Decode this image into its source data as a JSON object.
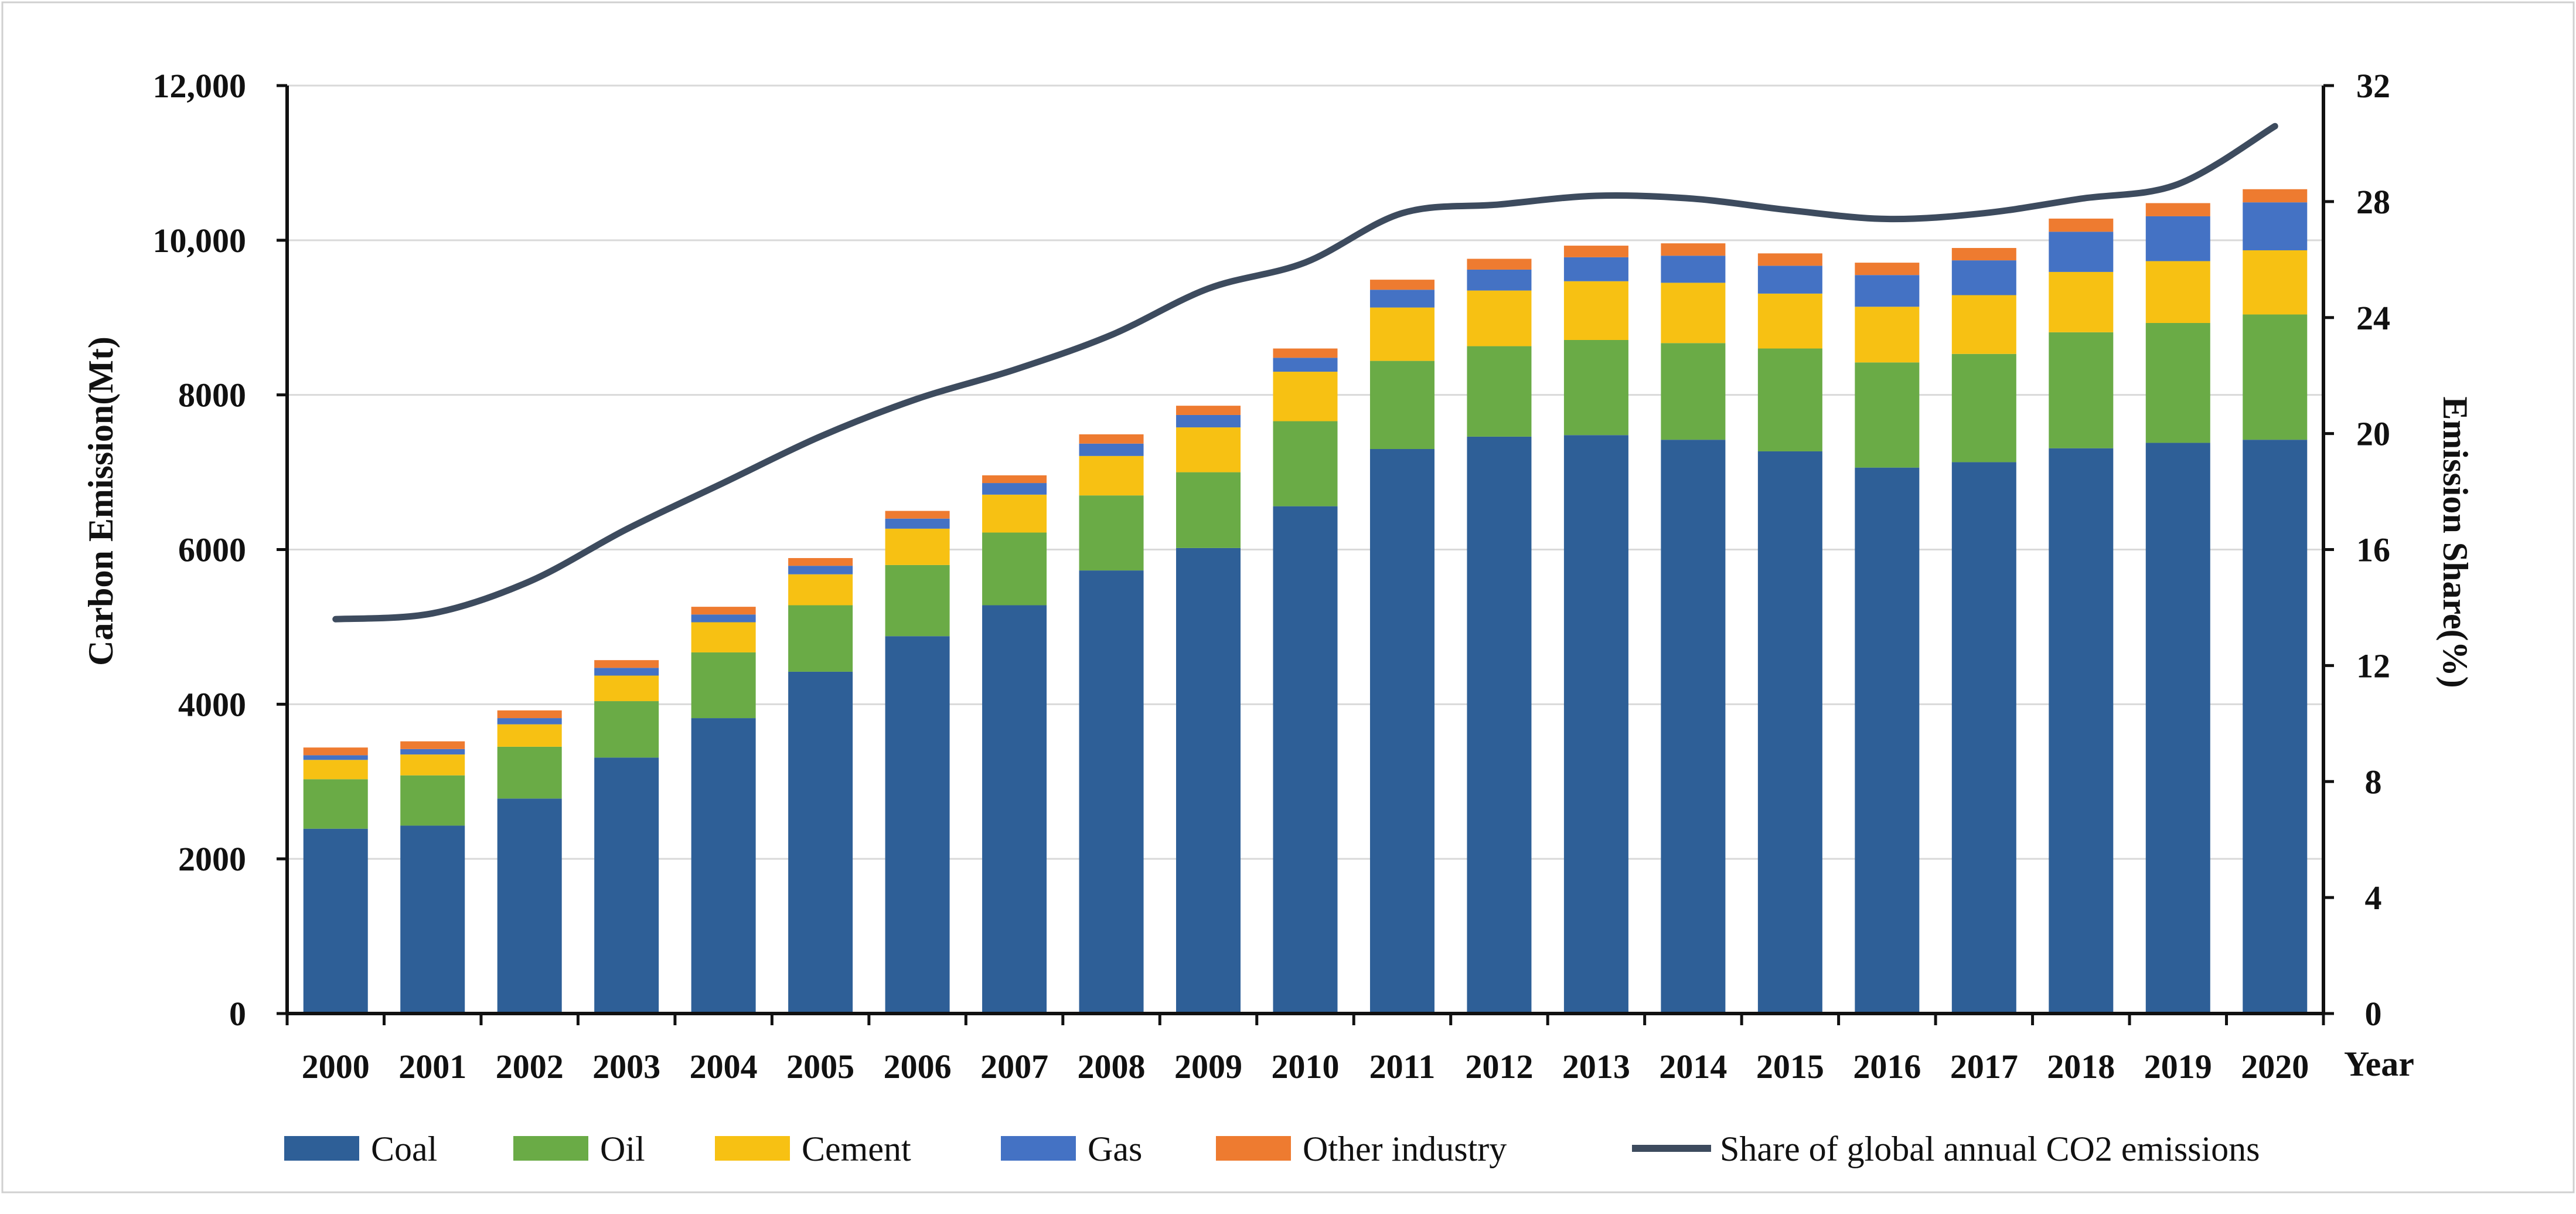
{
  "chart_data": {
    "type": "bar",
    "stacked": true,
    "categories": [
      "2000",
      "2001",
      "2002",
      "2003",
      "2004",
      "2005",
      "2006",
      "2007",
      "2008",
      "2009",
      "2010",
      "2011",
      "2012",
      "2013",
      "2014",
      "2015",
      "2016",
      "2017",
      "2018",
      "2019",
      "2020"
    ],
    "series": [
      {
        "name": "Coal",
        "color": "#2e5f97",
        "values": [
          2390,
          2430,
          2780,
          3310,
          3820,
          4420,
          4880,
          5280,
          5730,
          6020,
          6560,
          7300,
          7460,
          7480,
          7420,
          7270,
          7060,
          7130,
          7310,
          7380,
          7420
        ]
      },
      {
        "name": "Oil",
        "color": "#6aab46",
        "values": [
          640,
          650,
          670,
          730,
          850,
          860,
          920,
          940,
          970,
          980,
          1100,
          1140,
          1170,
          1230,
          1250,
          1330,
          1360,
          1400,
          1500,
          1550,
          1620
        ]
      },
      {
        "name": "Cement",
        "color": "#f7c113",
        "values": [
          250,
          270,
          290,
          330,
          390,
          400,
          470,
          490,
          510,
          580,
          640,
          690,
          720,
          760,
          780,
          710,
          720,
          760,
          780,
          800,
          830
        ]
      },
      {
        "name": "Gas",
        "color": "#4472c4",
        "values": [
          60,
          70,
          80,
          100,
          100,
          110,
          130,
          150,
          160,
          160,
          180,
          230,
          270,
          310,
          350,
          360,
          410,
          450,
          520,
          580,
          620
        ]
      },
      {
        "name": "Other industry",
        "color": "#ee7b30",
        "values": [
          100,
          100,
          100,
          100,
          100,
          100,
          100,
          100,
          120,
          120,
          120,
          130,
          140,
          150,
          160,
          160,
          160,
          160,
          170,
          170,
          170
        ]
      }
    ],
    "line": {
      "name": "Share of global annual CO2 emissions",
      "color": "#3d4b5e",
      "axis": "right",
      "values": [
        13.6,
        13.8,
        14.9,
        16.7,
        18.3,
        19.9,
        21.2,
        22.2,
        23.4,
        25.0,
        25.9,
        27.6,
        27.9,
        28.2,
        28.1,
        27.7,
        27.4,
        27.6,
        28.1,
        28.6,
        30.6
      ]
    },
    "ylabel": "Carbon Emission(Mt)",
    "y2label": "Emission Share(%)",
    "xlabel": "Year",
    "ylim": [
      0,
      12000
    ],
    "y2lim": [
      0,
      32
    ],
    "yticks": [
      "0",
      "2000",
      "4000",
      "6000",
      "8000",
      "10,000",
      "12,000"
    ],
    "y2ticks": [
      "0",
      "4",
      "8",
      "12",
      "16",
      "20",
      "24",
      "28",
      "32"
    ],
    "legend_position": "bottom",
    "grid": true
  }
}
